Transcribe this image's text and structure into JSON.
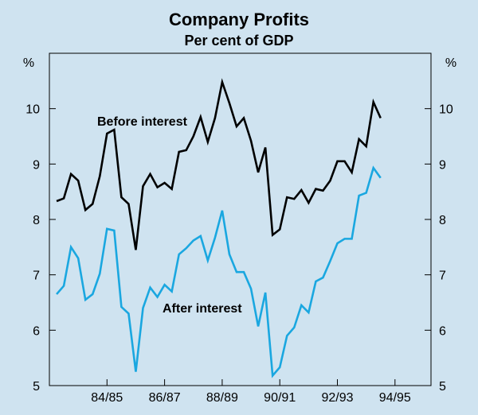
{
  "chart_data": {
    "type": "line",
    "title": "Company Profits",
    "subtitle": "Per cent of GDP",
    "ylabel_left": "%",
    "ylabel_right": "%",
    "ylim": [
      5,
      11
    ],
    "yticks": [
      "5",
      "6",
      "7",
      "8",
      "9",
      "10"
    ],
    "xlim": [
      0,
      53
    ],
    "x_tick_labels": [
      "84/85",
      "86/87",
      "88/89",
      "90/91",
      "92/93",
      "94/95"
    ],
    "x_tick_positions": [
      8,
      16,
      24,
      32,
      40,
      48
    ],
    "grid": false,
    "series": [
      {
        "name": "Before interest",
        "color": "#000000",
        "values": [
          8.33,
          8.38,
          8.82,
          8.7,
          8.17,
          8.28,
          8.78,
          9.55,
          9.62,
          8.4,
          8.28,
          7.45,
          8.6,
          8.82,
          8.58,
          8.66,
          8.55,
          9.22,
          9.25,
          9.5,
          9.85,
          9.4,
          9.83,
          10.48,
          10.1,
          9.68,
          9.83,
          9.42,
          8.85,
          9.3,
          7.72,
          7.82,
          8.4,
          8.37,
          8.53,
          8.3,
          8.55,
          8.52,
          8.7,
          9.05,
          9.05,
          8.85,
          9.45,
          9.32,
          10.12,
          9.83
        ]
      },
      {
        "name": "After interest",
        "color": "#1aa7e0",
        "values": [
          6.65,
          6.8,
          7.5,
          7.3,
          6.55,
          6.65,
          7.02,
          7.83,
          7.8,
          6.42,
          6.3,
          5.25,
          6.4,
          6.77,
          6.6,
          6.82,
          6.7,
          7.37,
          7.48,
          7.62,
          7.7,
          7.26,
          7.67,
          8.16,
          7.37,
          7.05,
          7.05,
          6.75,
          6.07,
          6.68,
          5.18,
          5.33,
          5.9,
          6.05,
          6.45,
          6.32,
          6.88,
          6.95,
          7.25,
          7.57,
          7.65,
          7.65,
          8.43,
          8.48,
          8.93,
          8.75
        ]
      }
    ],
    "annotations": [
      "Before interest",
      "After interest"
    ]
  }
}
